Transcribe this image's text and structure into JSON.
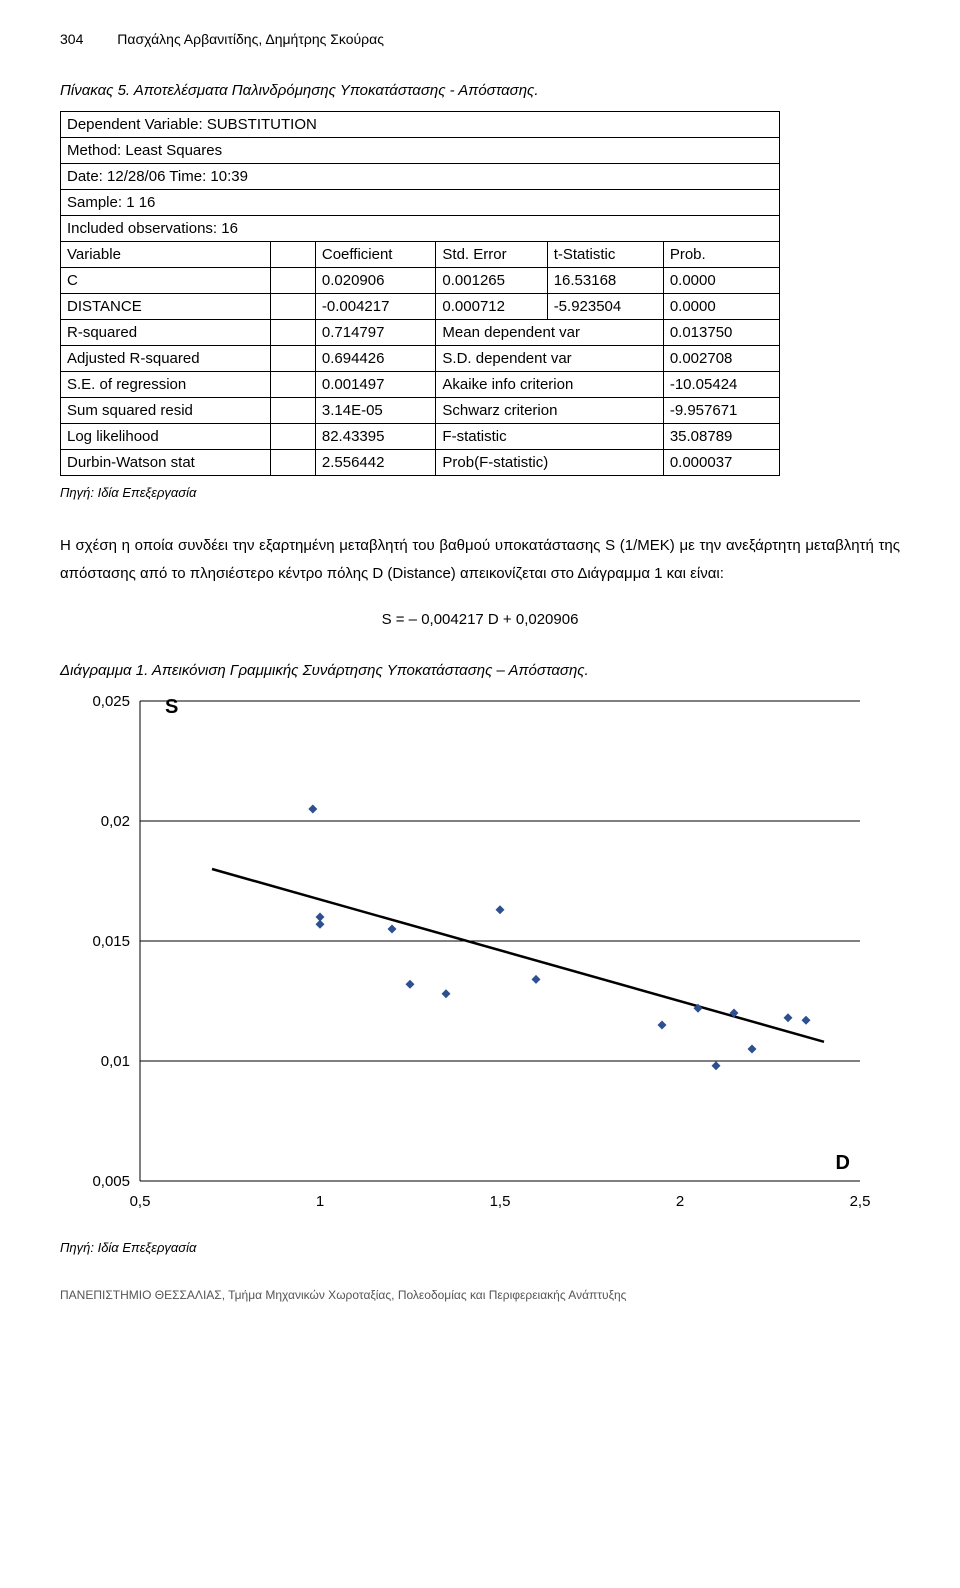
{
  "header": {
    "page_number": "304",
    "authors": "Πασχάλης Αρβανιτίδης, Δημήτρης Σκούρας"
  },
  "table5": {
    "title": "Πίνακας 5. Αποτελέσματα Παλινδρόμησης Υποκατάστασης - Απόστασης.",
    "rows_top": [
      "Dependent Variable: SUBSTITUTION",
      "Method: Least Squares",
      "Date: 12/28/06   Time: 10:39",
      "Sample: 1 16",
      "Included observations: 16"
    ],
    "header_row": [
      "Variable",
      "Coefficient",
      "Std. Error",
      "t-Statistic",
      "Prob."
    ],
    "var_rows": [
      [
        "C",
        "0.020906",
        "0.001265",
        "16.53168",
        "0.0000"
      ],
      [
        "DISTANCE",
        "-0.004217",
        "0.000712",
        "-5.923504",
        "0.0000"
      ]
    ],
    "stat_rows": [
      [
        "R-squared",
        "0.714797",
        "Mean dependent var",
        "0.013750"
      ],
      [
        "Adjusted R-squared",
        "0.694426",
        "S.D. dependent var",
        "0.002708"
      ],
      [
        "S.E. of regression",
        "0.001497",
        "Akaike info criterion",
        "-10.05424"
      ],
      [
        "Sum squared resid",
        "3.14E-05",
        "Schwarz criterion",
        "-9.957671"
      ],
      [
        "Log likelihood",
        "82.43395",
        "F-statistic",
        "35.08789"
      ],
      [
        "Durbin-Watson stat",
        "2.556442",
        "Prob(F-statistic)",
        "0.000037"
      ]
    ],
    "source": "Πηγή: Ιδία Επεξεργασία"
  },
  "paragraph": "Η σχέση η οποία συνδέει την εξαρτημένη μεταβλητή του βαθμού υποκατάστασης S (1/ΜΕΚ) με την ανεξάρτητη μεταβλητή της απόστασης από το πλησιέστερο κέντρο πόλης D (Distance) απεικονίζεται στο Διάγραμμα 1 και είναι:",
  "equation": "S = – 0,004217 D + 0,020906",
  "diagram": {
    "title": "Διάγραμμα 1. Απεικόνιση Γραμμικής Συνάρτησης Υποκατάστασης – Απόστασης.",
    "type": "scatter-with-line",
    "x_label": "D",
    "y_label": "S",
    "xlim": [
      0.5,
      2.5
    ],
    "ylim": [
      0.005,
      0.025
    ],
    "x_ticks": [
      0.5,
      1,
      1.5,
      2,
      2.5
    ],
    "x_tick_labels": [
      "0,5",
      "1",
      "1,5",
      "2",
      "2,5"
    ],
    "y_ticks": [
      0.005,
      0.01,
      0.015,
      0.02,
      0.025
    ],
    "y_tick_labels": [
      "0,005",
      "0,01",
      "0,015",
      "0,02",
      "0,025"
    ],
    "points": [
      [
        0.98,
        0.0205
      ],
      [
        1.0,
        0.016
      ],
      [
        1.0,
        0.0157
      ],
      [
        1.2,
        0.0155
      ],
      [
        1.25,
        0.0132
      ],
      [
        1.35,
        0.0128
      ],
      [
        1.5,
        0.0163
      ],
      [
        1.6,
        0.0134
      ],
      [
        1.95,
        0.0115
      ],
      [
        2.05,
        0.0122
      ],
      [
        2.1,
        0.0098
      ],
      [
        2.15,
        0.012
      ],
      [
        2.2,
        0.0105
      ],
      [
        2.3,
        0.0118
      ],
      [
        2.35,
        0.0117
      ]
    ],
    "regression_line": {
      "x1": 0.7,
      "y1": 0.018,
      "x2": 2.4,
      "y2": 0.0108
    },
    "marker_color": "#2e5090",
    "line_color": "#000000",
    "grid_color": "#000000",
    "background_color": "#ffffff",
    "marker_size": 9,
    "line_width": 2.5,
    "tick_fontsize": 15,
    "label_fontsize": 20,
    "source": "Πηγή: Ιδία Επεξεργασία"
  },
  "footer": "ΠΑΝΕΠΙΣΤΗΜΙΟ ΘΕΣΣΑΛΙΑΣ, Τμήμα Μηχανικών Χωροταξίας, Πολεοδομίας και Περιφερειακής Ανάπτυξης"
}
